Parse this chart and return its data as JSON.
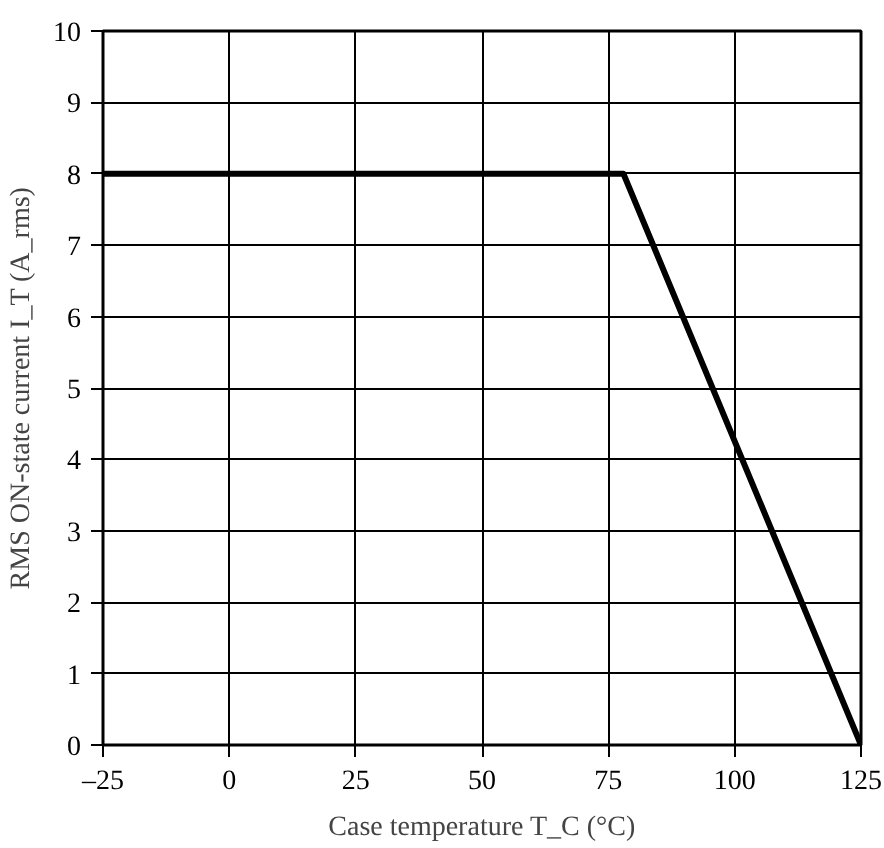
{
  "chart_data": {
    "type": "line",
    "xlabel": "Case temperature T_C (°C)",
    "ylabel": "RMS ON-state current I_T (A_rms)",
    "x": [
      -25,
      78,
      125
    ],
    "series": [
      {
        "color": "#000000",
        "values": [
          8,
          8,
          0
        ]
      }
    ],
    "xlim": [
      -25,
      125
    ],
    "xticks": [
      {
        "value": -25,
        "label": "–25"
      },
      0,
      25,
      50,
      75,
      100,
      125
    ],
    "ylim": [
      0,
      10
    ],
    "yticks": [
      0,
      1,
      2,
      3,
      4,
      5,
      6,
      7,
      8,
      9,
      10
    ],
    "grid": true,
    "line_style": "solid"
  }
}
